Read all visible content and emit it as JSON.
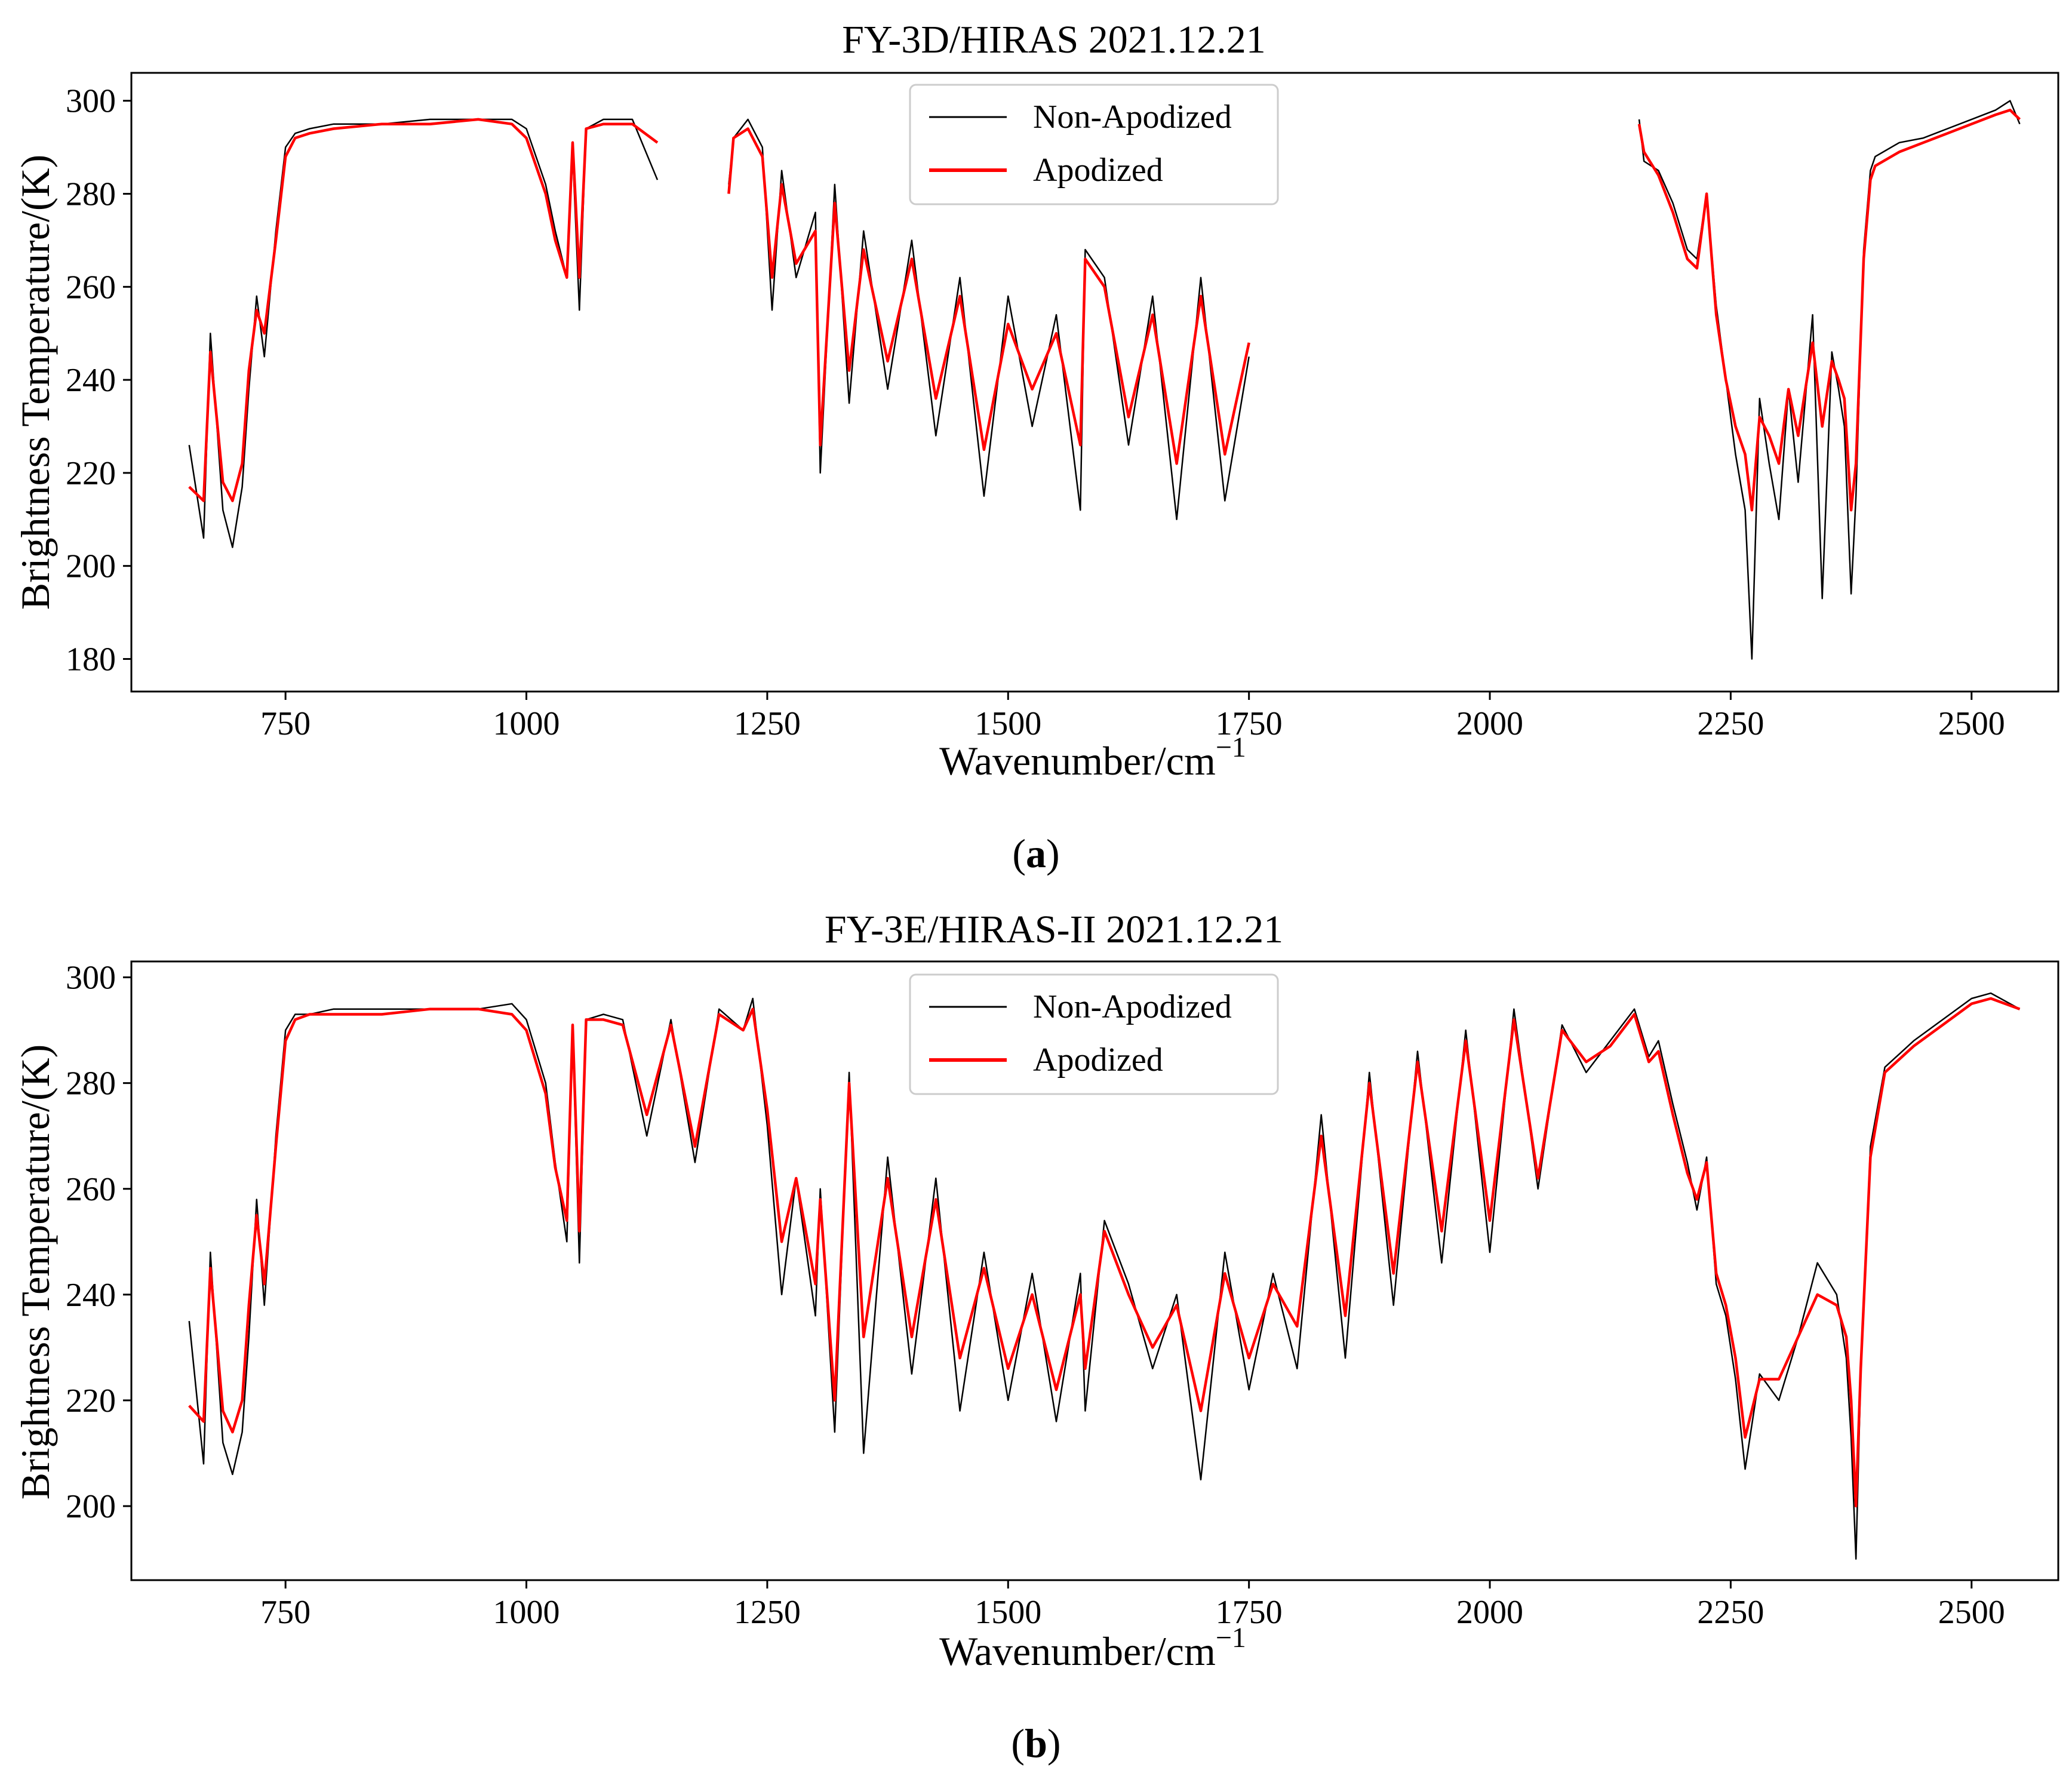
{
  "figure": {
    "panel_labels": [
      "a",
      "b"
    ]
  },
  "chart_data": [
    {
      "type": "line",
      "title": "FY-3D/HIRAS 2021.12.21",
      "xlabel": "Wavenumber/cm",
      "xlabel_sup": "−1",
      "ylabel": "Brightness Temperature/(K)",
      "xlim": [
        590,
        2590
      ],
      "ylim": [
        173,
        306
      ],
      "xticks": [
        750,
        1000,
        1250,
        1500,
        1750,
        2000,
        2250,
        2500
      ],
      "yticks": [
        180,
        200,
        220,
        240,
        260,
        280,
        300
      ],
      "legend": {
        "position": "top-center",
        "entries": [
          "Non-Apodized",
          "Apodized"
        ]
      },
      "colors": {
        "Non-Apodized": "#000000",
        "Apodized": "#ff0000"
      },
      "series": [
        {
          "name": "Non-Apodized",
          "segments": [
            {
              "x": [
                650,
                665,
                672,
                685,
                695,
                705,
                712,
                720,
                728,
                740,
                750,
                760,
                775,
                800,
                850,
                900,
                950,
                985,
                1000,
                1020,
                1030,
                1042,
                1048,
                1055,
                1062,
                1080,
                1110,
                1136
              ],
              "y": [
                226,
                206,
                250,
                212,
                204,
                217,
                238,
                258,
                245,
                272,
                290,
                293,
                294,
                295,
                295,
                296,
                296,
                296,
                294,
                282,
                272,
                262,
                289,
                255,
                294,
                296,
                296,
                283
              ]
            },
            {
              "x": [
                1210,
                1215,
                1230,
                1245,
                1255,
                1265,
                1280,
                1300,
                1305,
                1320,
                1335,
                1350,
                1375,
                1400,
                1425,
                1450,
                1475,
                1500,
                1525,
                1550,
                1575,
                1580,
                1600,
                1625,
                1650,
                1675,
                1700,
                1725,
                1750
              ],
              "y": [
                282,
                292,
                296,
                290,
                255,
                285,
                262,
                276,
                220,
                282,
                235,
                272,
                238,
                270,
                228,
                262,
                215,
                258,
                230,
                254,
                212,
                268,
                262,
                226,
                258,
                210,
                262,
                214,
                245
              ]
            },
            {
              "x": [
                2155,
                2160,
                2175,
                2190,
                2205,
                2215,
                2225,
                2235,
                2245,
                2255,
                2265,
                2272,
                2280,
                2290,
                2300,
                2310,
                2320,
                2335,
                2345,
                2355,
                2362,
                2368,
                2375,
                2380,
                2388,
                2395,
                2400,
                2425,
                2450,
                2475,
                2500,
                2525,
                2540,
                2550
              ],
              "y": [
                296,
                287,
                285,
                278,
                268,
                266,
                280,
                256,
                240,
                224,
                212,
                180,
                236,
                222,
                210,
                238,
                218,
                254,
                193,
                246,
                238,
                230,
                194,
                215,
                268,
                285,
                288,
                291,
                292,
                294,
                296,
                298,
                300,
                295
              ]
            }
          ]
        },
        {
          "name": "Apodized",
          "segments": [
            {
              "x": [
                650,
                665,
                672,
                685,
                695,
                705,
                712,
                720,
                728,
                740,
                750,
                760,
                775,
                800,
                850,
                900,
                950,
                985,
                1000,
                1020,
                1030,
                1042,
                1048,
                1055,
                1062,
                1080,
                1110,
                1136
              ],
              "y": [
                217,
                214,
                246,
                218,
                214,
                222,
                242,
                255,
                250,
                270,
                288,
                292,
                293,
                294,
                295,
                295,
                296,
                295,
                292,
                280,
                270,
                262,
                291,
                262,
                294,
                295,
                295,
                291
              ]
            },
            {
              "x": [
                1210,
                1215,
                1230,
                1245,
                1255,
                1265,
                1280,
                1300,
                1305,
                1320,
                1335,
                1350,
                1375,
                1400,
                1425,
                1450,
                1475,
                1500,
                1525,
                1550,
                1575,
                1580,
                1600,
                1625,
                1650,
                1675,
                1700,
                1725,
                1750
              ],
              "y": [
                280,
                292,
                294,
                288,
                262,
                282,
                265,
                272,
                226,
                278,
                242,
                268,
                244,
                266,
                236,
                258,
                225,
                252,
                238,
                250,
                226,
                266,
                260,
                232,
                254,
                222,
                258,
                224,
                248
              ]
            },
            {
              "x": [
                2155,
                2160,
                2175,
                2190,
                2205,
                2215,
                2225,
                2235,
                2245,
                2255,
                2265,
                2272,
                2280,
                2290,
                2300,
                2310,
                2320,
                2335,
                2345,
                2355,
                2362,
                2368,
                2375,
                2380,
                2388,
                2395,
                2400,
                2425,
                2450,
                2475,
                2500,
                2525,
                2540,
                2550
              ],
              "y": [
                295,
                289,
                284,
                276,
                266,
                264,
                280,
                254,
                240,
                230,
                224,
                212,
                232,
                228,
                222,
                238,
                228,
                248,
                230,
                244,
                240,
                236,
                212,
                222,
                266,
                283,
                286,
                289,
                291,
                293,
                295,
                297,
                298,
                296
              ]
            }
          ]
        }
      ]
    },
    {
      "type": "line",
      "title": "FY-3E/HIRAS-II 2021.12.21",
      "xlabel": "Wavenumber/cm",
      "xlabel_sup": "−1",
      "ylabel": "Brightness Temperature/(K)",
      "xlim": [
        590,
        2590
      ],
      "ylim": [
        186,
        303
      ],
      "xticks": [
        750,
        1000,
        1250,
        1500,
        1750,
        2000,
        2250,
        2500
      ],
      "yticks": [
        200,
        220,
        240,
        260,
        280,
        300
      ],
      "legend": {
        "position": "top-center",
        "entries": [
          "Non-Apodized",
          "Apodized"
        ]
      },
      "colors": {
        "Non-Apodized": "#000000",
        "Apodized": "#ff0000"
      },
      "series": [
        {
          "name": "Non-Apodized",
          "segments": [
            {
              "x": [
                650,
                665,
                672,
                685,
                695,
                705,
                712,
                720,
                728,
                740,
                750,
                760,
                775,
                800,
                850,
                900,
                950,
                985,
                1000,
                1020,
                1030,
                1042,
                1048,
                1055,
                1062,
                1080,
                1100,
                1125,
                1150,
                1175,
                1200,
                1225,
                1235,
                1250,
                1265,
                1280,
                1300,
                1305,
                1320,
                1335,
                1350,
                1375,
                1400,
                1425,
                1450,
                1475,
                1500,
                1525,
                1550,
                1575,
                1580,
                1600,
                1625,
                1650,
                1675,
                1700,
                1725,
                1750,
                1775,
                1800,
                1825,
                1850,
                1875,
                1900,
                1925,
                1950,
                1975,
                2000,
                2025,
                2050,
                2075,
                2100,
                2125,
                2150,
                2165,
                2175,
                2190,
                2205,
                2215,
                2225,
                2235,
                2245,
                2255,
                2265,
                2280,
                2300,
                2320,
                2340,
                2360,
                2370,
                2375,
                2380,
                2385,
                2395,
                2410,
                2440,
                2470,
                2500,
                2520,
                2550
              ],
              "y": [
                235,
                208,
                248,
                212,
                206,
                214,
                232,
                258,
                238,
                270,
                290,
                293,
                293,
                294,
                294,
                294,
                294,
                295,
                292,
                280,
                265,
                250,
                290,
                246,
                292,
                293,
                292,
                270,
                292,
                265,
                294,
                290,
                296,
                272,
                240,
                262,
                236,
                260,
                214,
                282,
                210,
                266,
                225,
                262,
                218,
                248,
                220,
                244,
                216,
                244,
                218,
                254,
                242,
                226,
                240,
                205,
                248,
                222,
                244,
                226,
                274,
                228,
                282,
                238,
                286,
                246,
                290,
                248,
                294,
                260,
                291,
                282,
                288,
                294,
                285,
                288,
                276,
                265,
                256,
                266,
                242,
                236,
                224,
                207,
                225,
                220,
                232,
                246,
                240,
                228,
                213,
                190,
                225,
                268,
                283,
                288,
                292,
                296,
                297,
                294
              ]
            }
          ]
        },
        {
          "name": "Apodized",
          "segments": [
            {
              "x": [
                650,
                665,
                672,
                685,
                695,
                705,
                712,
                720,
                728,
                740,
                750,
                760,
                775,
                800,
                850,
                900,
                950,
                985,
                1000,
                1020,
                1030,
                1042,
                1048,
                1055,
                1062,
                1080,
                1100,
                1125,
                1150,
                1175,
                1200,
                1225,
                1235,
                1250,
                1265,
                1280,
                1300,
                1305,
                1320,
                1335,
                1350,
                1375,
                1400,
                1425,
                1450,
                1475,
                1500,
                1525,
                1550,
                1575,
                1580,
                1600,
                1625,
                1650,
                1675,
                1700,
                1725,
                1750,
                1775,
                1800,
                1825,
                1850,
                1875,
                1900,
                1925,
                1950,
                1975,
                2000,
                2025,
                2050,
                2075,
                2100,
                2125,
                2150,
                2165,
                2175,
                2190,
                2205,
                2215,
                2225,
                2235,
                2245,
                2255,
                2265,
                2280,
                2300,
                2320,
                2340,
                2360,
                2370,
                2375,
                2380,
                2385,
                2395,
                2410,
                2440,
                2470,
                2500,
                2520,
                2550
              ],
              "y": [
                219,
                216,
                245,
                218,
                214,
                220,
                238,
                255,
                242,
                268,
                288,
                292,
                293,
                293,
                293,
                294,
                294,
                293,
                290,
                278,
                264,
                254,
                291,
                252,
                292,
                292,
                291,
                274,
                291,
                268,
                293,
                290,
                294,
                275,
                250,
                262,
                242,
                258,
                220,
                280,
                232,
                262,
                232,
                258,
                228,
                245,
                226,
                240,
                222,
                240,
                226,
                252,
                240,
                230,
                238,
                218,
                244,
                228,
                242,
                234,
                270,
                236,
                280,
                244,
                284,
                252,
                288,
                254,
                292,
                262,
                290,
                284,
                287,
                293,
                284,
                286,
                274,
                263,
                258,
                265,
                244,
                238,
                228,
                213,
                224,
                224,
                232,
                240,
                238,
                232,
                220,
                200,
                226,
                266,
                282,
                287,
                291,
                295,
                296,
                294
              ]
            }
          ]
        }
      ]
    }
  ]
}
